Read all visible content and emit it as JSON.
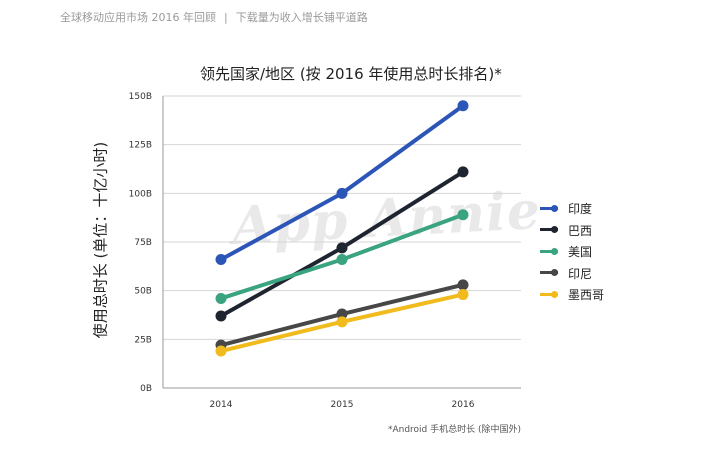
{
  "header": {
    "left": "全球移动应用市场 2016 年回顾",
    "separator": "|",
    "right": "下载量为收入增长铺平道路"
  },
  "watermark": "App Annie",
  "footnote": "*Android 手机总时长 (除中国外)",
  "chart_data": {
    "type": "line",
    "title": "领先国家/地区 (按 2016 年使用总时长排名)*",
    "xlabel": "",
    "ylabel": "使用总时长 (单位：十亿小时)",
    "categories": [
      "2014",
      "2015",
      "2016"
    ],
    "ylim": [
      0,
      150
    ],
    "yticks": [
      "0B",
      "25B",
      "50B",
      "75B",
      "100B",
      "125B",
      "150B"
    ],
    "ytick_values": [
      0,
      25,
      50,
      75,
      100,
      125,
      150
    ],
    "grid": true,
    "legend_position": "right",
    "series": [
      {
        "name": "印度",
        "color": "#2c55b8",
        "values": [
          66,
          100,
          145
        ]
      },
      {
        "name": "巴西",
        "color": "#1f2530",
        "values": [
          37,
          72,
          111
        ]
      },
      {
        "name": "美国",
        "color": "#3aa37f",
        "values": [
          46,
          66,
          89
        ]
      },
      {
        "name": "印尼",
        "color": "#474747",
        "values": [
          22,
          38,
          53
        ]
      },
      {
        "name": "墨西哥",
        "color": "#f1bb1e",
        "values": [
          19,
          34,
          48
        ]
      }
    ]
  }
}
